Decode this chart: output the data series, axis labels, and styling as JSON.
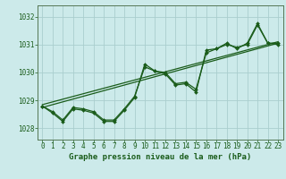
{
  "title": "Graphe pression niveau de la mer (hPa)",
  "background_color": "#cceaea",
  "grid_color": "#aacece",
  "line_color": "#1a5c1a",
  "xlim": [
    -0.5,
    23.5
  ],
  "ylim": [
    1027.6,
    1032.4
  ],
  "yticks": [
    1028,
    1029,
    1030,
    1031,
    1032
  ],
  "xticks": [
    0,
    1,
    2,
    3,
    4,
    5,
    6,
    7,
    8,
    9,
    10,
    11,
    12,
    13,
    14,
    15,
    16,
    17,
    18,
    19,
    20,
    21,
    22,
    23
  ],
  "series_wavy_x": [
    0,
    1,
    2,
    3,
    4,
    5,
    6,
    7,
    8,
    9,
    10,
    11,
    12,
    13,
    14,
    15,
    16,
    17,
    18,
    19,
    20,
    21,
    22,
    23
  ],
  "series_wavy_y": [
    1028.8,
    1028.55,
    1028.25,
    1028.7,
    1028.65,
    1028.55,
    1028.25,
    1028.25,
    1028.65,
    1029.1,
    1030.3,
    1030.05,
    1029.95,
    1029.55,
    1029.6,
    1029.3,
    1030.8,
    1030.85,
    1031.05,
    1030.85,
    1031.05,
    1031.75,
    1031.05,
    1031.05
  ],
  "series_smooth_x": [
    0,
    1,
    2,
    3,
    4,
    5,
    6,
    7,
    8,
    9,
    10,
    11,
    12,
    13,
    14,
    15,
    16,
    17,
    18,
    19,
    20,
    21,
    22,
    23
  ],
  "series_smooth_y": [
    1028.8,
    1028.6,
    1028.3,
    1028.75,
    1028.7,
    1028.6,
    1028.3,
    1028.3,
    1028.7,
    1029.15,
    1030.2,
    1030.05,
    1030.0,
    1029.6,
    1029.65,
    1029.4,
    1030.7,
    1030.85,
    1031.0,
    1030.9,
    1031.0,
    1031.7,
    1031.05,
    1031.0
  ],
  "trend1_x": [
    0,
    23
  ],
  "trend1_y": [
    1028.75,
    1031.05
  ],
  "trend2_x": [
    0,
    23
  ],
  "trend2_y": [
    1028.85,
    1031.1
  ]
}
